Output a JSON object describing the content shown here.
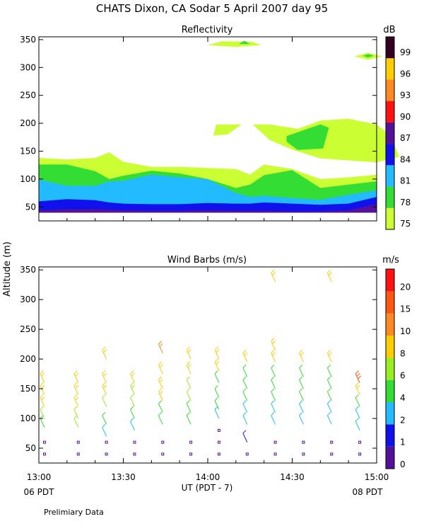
{
  "title": "CHATS Dixon, CA  Sodar    5 April 2007   day  95",
  "footer_note": "Prelimiary Data",
  "shared_ylabel": "Altitude  (m)",
  "chart_data": [
    {
      "type": "heatmap",
      "title": "Reflectivity",
      "ylim": [
        25,
        355
      ],
      "xlim": [
        0,
        120
      ],
      "yticks": [
        "50",
        "100",
        "150",
        "200",
        "250",
        "300",
        "350"
      ],
      "colorbar": {
        "unit": "dB",
        "labels": [
          "75",
          "78",
          "81",
          "84",
          "87",
          "90",
          "93",
          "96",
          "99"
        ],
        "colors": [
          "#ccff33",
          "#33dd33",
          "#22bbff",
          "#1111ee",
          "#551199",
          "#ff1111",
          "#ff8822",
          "#ffcc00",
          "#330022"
        ]
      },
      "profiles": {
        "t": [
          0,
          10,
          20,
          25,
          30,
          40,
          50,
          60,
          70,
          75,
          80,
          90,
          100,
          110,
          120
        ],
        "b75": [
          138,
          135,
          138,
          148,
          131,
          122,
          122,
          120,
          118,
          108,
          126,
          118,
          100,
          103,
          108
        ],
        "b78": [
          126,
          126,
          114,
          100,
          106,
          115,
          110,
          100,
          84,
          90,
          107,
          116,
          84,
          90,
          96
        ],
        "b81": [
          99,
          88,
          88,
          96,
          97,
          108,
          103,
          100,
          75,
          68,
          70,
          66,
          63,
          72,
          80
        ],
        "b84": [
          60,
          64,
          62,
          58,
          56,
          55,
          55,
          57,
          56,
          56,
          58,
          56,
          54,
          56,
          68
        ],
        "b87": [
          44,
          46,
          46,
          45,
          44,
          43,
          43,
          44,
          43,
          43,
          43,
          42,
          42,
          44,
          55
        ]
      },
      "blobs": [
        {
          "level": "b75",
          "points": [
            [
              62,
              178
            ],
            [
              63,
              198
            ],
            [
              72,
              198
            ],
            [
              67,
              180
            ]
          ]
        },
        {
          "level": "b75",
          "points": [
            [
              76,
              198
            ],
            [
              82,
              198
            ],
            [
              92,
              190
            ],
            [
              100,
              205
            ],
            [
              110,
              208
            ],
            [
              120,
              198
            ],
            [
              125,
              178
            ],
            [
              128,
              140
            ],
            [
              120,
              130
            ],
            [
              100,
              137
            ],
            [
              90,
              153
            ],
            [
              82,
              170
            ]
          ]
        },
        {
          "level": "b78",
          "points": [
            [
              88,
              177
            ],
            [
              100,
              198
            ],
            [
              103,
              192
            ],
            [
              101,
              155
            ],
            [
              92,
              152
            ],
            [
              88,
              167
            ]
          ]
        },
        {
          "level": "b75",
          "points": [
            [
              60,
              340
            ],
            [
              65,
              347
            ],
            [
              76,
              346
            ],
            [
              79,
              340
            ],
            [
              70,
              337
            ]
          ]
        },
        {
          "level": "b78",
          "points": [
            [
              71,
              342
            ],
            [
              73,
              348
            ],
            [
              75,
              342
            ]
          ]
        },
        {
          "level": "b75",
          "points": [
            [
              112,
              320
            ],
            [
              117,
              326
            ],
            [
              122,
              320
            ],
            [
              117,
              314
            ]
          ]
        },
        {
          "level": "b78",
          "points": [
            [
              115,
              321
            ],
            [
              117,
              324
            ],
            [
              119,
              321
            ],
            [
              117,
              318
            ]
          ]
        }
      ]
    },
    {
      "type": "scatter",
      "title": "Wind Barbs (m/s)",
      "xlim": [
        0,
        120
      ],
      "ylim": [
        25,
        355
      ],
      "xticks": [
        "13:00",
        "13:30",
        "14:00",
        "14:30",
        "15:00"
      ],
      "x_start_label": "06 PDT",
      "x_end_label": "08 PDT",
      "xlabel": "UT  (PDT - 7)",
      "yticks": [
        "50",
        "100",
        "150",
        "200",
        "250",
        "300",
        "350"
      ],
      "colorbar": {
        "unit": "m/s",
        "labels": [
          "0",
          "1",
          "2",
          "4",
          "6",
          "8",
          "10",
          "15",
          "20"
        ],
        "colors": [
          "#551199",
          "#1111ee",
          "#22bbff",
          "#33dd33",
          "#99ee22",
          "#ffcc00",
          "#ff8822",
          "#ff5511",
          "#ff1111"
        ]
      },
      "times": [
        2,
        14,
        24,
        34,
        44,
        54,
        64,
        74,
        84,
        94,
        104,
        114
      ],
      "altitudes": [
        40,
        60,
        80,
        100,
        120,
        140,
        160,
        180,
        200,
        220,
        320,
        340
      ],
      "barbs": [
        {
          "t": 2,
          "alt": 40,
          "speed": 0.6
        },
        {
          "t": 2,
          "alt": 60,
          "speed": 0.6
        },
        {
          "t": 2,
          "alt": 85,
          "speed": 5.5
        },
        {
          "t": 2,
          "alt": 100,
          "speed": 6.5
        },
        {
          "t": 2,
          "alt": 120,
          "speed": 8.5
        },
        {
          "t": 2,
          "alt": 140,
          "speed": 9
        },
        {
          "t": 2,
          "alt": 160,
          "speed": 9
        },
        {
          "t": 14,
          "alt": 40,
          "speed": 0.6
        },
        {
          "t": 14,
          "alt": 60,
          "speed": 0.6
        },
        {
          "t": 14,
          "alt": 85,
          "speed": 6
        },
        {
          "t": 14,
          "alt": 100,
          "speed": 6.5
        },
        {
          "t": 14,
          "alt": 120,
          "speed": 8.5
        },
        {
          "t": 14,
          "alt": 140,
          "speed": 9
        },
        {
          "t": 14,
          "alt": 160,
          "speed": 9
        },
        {
          "t": 24,
          "alt": 40,
          "speed": 0.6
        },
        {
          "t": 24,
          "alt": 60,
          "speed": 0.6
        },
        {
          "t": 24,
          "alt": 70,
          "speed": 3
        },
        {
          "t": 24,
          "alt": 90,
          "speed": 4.5
        },
        {
          "t": 24,
          "alt": 120,
          "speed": 6
        },
        {
          "t": 24,
          "alt": 140,
          "speed": 8
        },
        {
          "t": 24,
          "alt": 160,
          "speed": 8.5
        },
        {
          "t": 24,
          "alt": 200,
          "speed": 9
        },
        {
          "t": 34,
          "alt": 40,
          "speed": 0.6
        },
        {
          "t": 34,
          "alt": 60,
          "speed": 0.6
        },
        {
          "t": 34,
          "alt": 80,
          "speed": 3
        },
        {
          "t": 34,
          "alt": 100,
          "speed": 4.5
        },
        {
          "t": 34,
          "alt": 120,
          "speed": 6
        },
        {
          "t": 34,
          "alt": 140,
          "speed": 7.5
        },
        {
          "t": 34,
          "alt": 160,
          "speed": 9
        },
        {
          "t": 44,
          "alt": 40,
          "speed": 0.6
        },
        {
          "t": 44,
          "alt": 60,
          "speed": 0.6
        },
        {
          "t": 44,
          "alt": 90,
          "speed": 4.5
        },
        {
          "t": 44,
          "alt": 110,
          "speed": 5.5
        },
        {
          "t": 44,
          "alt": 130,
          "speed": 8
        },
        {
          "t": 44,
          "alt": 150,
          "speed": 8.5
        },
        {
          "t": 44,
          "alt": 175,
          "speed": 8.5
        },
        {
          "t": 44,
          "alt": 210,
          "speed": 10
        },
        {
          "t": 54,
          "alt": 40,
          "speed": 0.6
        },
        {
          "t": 54,
          "alt": 60,
          "speed": 0.6
        },
        {
          "t": 54,
          "alt": 90,
          "speed": 4
        },
        {
          "t": 54,
          "alt": 110,
          "speed": 5.5
        },
        {
          "t": 54,
          "alt": 130,
          "speed": 6
        },
        {
          "t": 54,
          "alt": 150,
          "speed": 6.5
        },
        {
          "t": 54,
          "alt": 175,
          "speed": 8.5
        },
        {
          "t": 54,
          "alt": 200,
          "speed": 9
        },
        {
          "t": 64,
          "alt": 40,
          "speed": 0.6
        },
        {
          "t": 64,
          "alt": 60,
          "speed": 0.6
        },
        {
          "t": 64,
          "alt": 80,
          "speed": 0.6
        },
        {
          "t": 64,
          "alt": 100,
          "speed": 3
        },
        {
          "t": 64,
          "alt": 115,
          "speed": 4.5
        },
        {
          "t": 64,
          "alt": 135,
          "speed": 5
        },
        {
          "t": 64,
          "alt": 160,
          "speed": 5
        },
        {
          "t": 64,
          "alt": 180,
          "speed": 8.5
        },
        {
          "t": 64,
          "alt": 200,
          "speed": 9
        },
        {
          "t": 74,
          "alt": 40,
          "speed": 0.6
        },
        {
          "t": 74,
          "alt": 60,
          "speed": 1.5
        },
        {
          "t": 74,
          "alt": 90,
          "speed": 3
        },
        {
          "t": 74,
          "alt": 110,
          "speed": 3.5
        },
        {
          "t": 74,
          "alt": 130,
          "speed": 4.5
        },
        {
          "t": 74,
          "alt": 150,
          "speed": 5
        },
        {
          "t": 74,
          "alt": 170,
          "speed": 5.5
        },
        {
          "t": 74,
          "alt": 195,
          "speed": 9
        },
        {
          "t": 84,
          "alt": 40,
          "speed": 0.6
        },
        {
          "t": 84,
          "alt": 60,
          "speed": 0.6
        },
        {
          "t": 84,
          "alt": 90,
          "speed": 3
        },
        {
          "t": 84,
          "alt": 110,
          "speed": 3.5
        },
        {
          "t": 84,
          "alt": 130,
          "speed": 4.5
        },
        {
          "t": 84,
          "alt": 150,
          "speed": 4.5
        },
        {
          "t": 84,
          "alt": 170,
          "speed": 5.5
        },
        {
          "t": 84,
          "alt": 195,
          "speed": 8.5
        },
        {
          "t": 84,
          "alt": 215,
          "speed": 9.5
        },
        {
          "t": 84,
          "alt": 330,
          "speed": 9
        },
        {
          "t": 94,
          "alt": 40,
          "speed": 0.6
        },
        {
          "t": 94,
          "alt": 60,
          "speed": 0.6
        },
        {
          "t": 94,
          "alt": 90,
          "speed": 3
        },
        {
          "t": 94,
          "alt": 110,
          "speed": 3.5
        },
        {
          "t": 94,
          "alt": 130,
          "speed": 4.5
        },
        {
          "t": 94,
          "alt": 150,
          "speed": 4.5
        },
        {
          "t": 94,
          "alt": 170,
          "speed": 5.5
        },
        {
          "t": 94,
          "alt": 195,
          "speed": 9
        },
        {
          "t": 104,
          "alt": 40,
          "speed": 0.6
        },
        {
          "t": 104,
          "alt": 60,
          "speed": 0.6
        },
        {
          "t": 104,
          "alt": 90,
          "speed": 3
        },
        {
          "t": 104,
          "alt": 110,
          "speed": 3.5
        },
        {
          "t": 104,
          "alt": 130,
          "speed": 4.5
        },
        {
          "t": 104,
          "alt": 150,
          "speed": 5
        },
        {
          "t": 104,
          "alt": 170,
          "speed": 5.5
        },
        {
          "t": 104,
          "alt": 195,
          "speed": 8.5
        },
        {
          "t": 104,
          "alt": 330,
          "speed": 9
        },
        {
          "t": 114,
          "alt": 40,
          "speed": 0.6
        },
        {
          "t": 114,
          "alt": 60,
          "speed": 0.6
        },
        {
          "t": 114,
          "alt": 80,
          "speed": 3
        },
        {
          "t": 114,
          "alt": 100,
          "speed": 3.5
        },
        {
          "t": 114,
          "alt": 120,
          "speed": 4.5
        },
        {
          "t": 114,
          "alt": 140,
          "speed": 8
        },
        {
          "t": 114,
          "alt": 160,
          "speed": 18
        }
      ]
    }
  ]
}
